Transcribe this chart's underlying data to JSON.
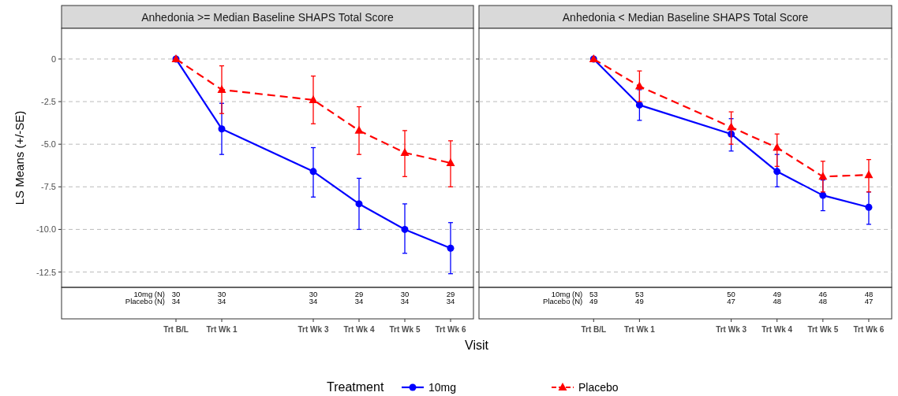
{
  "chart_data": [
    {
      "type": "line",
      "title": "Anhedonia >= Median Baseline SHAPS Total Score",
      "xlabel": "Visit",
      "ylabel": "LS Means (+/-SE)",
      "legend_title": "Treatment",
      "legend": "bottom",
      "grid": "y",
      "categories": [
        null,
        null,
        "Trt B/L",
        "Trt Wk 1",
        null,
        "Trt Wk 3",
        "Trt Wk 4",
        "Trt Wk 5",
        "Trt Wk 6"
      ],
      "ylim": [
        -13.4,
        1.8
      ],
      "yticks": [
        {
          "value": 0,
          "label": "0"
        },
        {
          "value": -2.5,
          "label": "-2.5"
        },
        {
          "value": -5,
          "label": "-5.0"
        },
        {
          "value": -7.5,
          "label": "-7.5"
        },
        {
          "value": -10,
          "label": "-10.0"
        },
        {
          "value": -12.5,
          "label": "-12.5"
        }
      ],
      "series": [
        {
          "name": "10mg",
          "color": "#0000ff",
          "marker": "circle",
          "line_style": "solid",
          "values": [
            null,
            null,
            0,
            -4.1,
            null,
            -6.6,
            -8.5,
            -10.0,
            -11.1
          ],
          "errors": [
            null,
            null,
            null,
            [
              -5.6,
              -2.6
            ],
            null,
            [
              -8.1,
              -5.2
            ],
            [
              -10.0,
              -7.0
            ],
            [
              -11.4,
              -8.5
            ],
            [
              -12.6,
              -9.6
            ]
          ]
        },
        {
          "name": "Placebo",
          "color": "#ff0000",
          "marker": "triangle",
          "line_style": "dashed",
          "values": [
            null,
            null,
            0,
            -1.8,
            null,
            -2.4,
            -4.2,
            -5.5,
            -6.1
          ],
          "errors": [
            null,
            null,
            null,
            [
              -3.2,
              -0.4
            ],
            null,
            [
              -3.8,
              -1.0
            ],
            [
              -5.6,
              -2.8
            ],
            [
              -6.9,
              -4.2
            ],
            [
              -7.5,
              -4.8
            ]
          ]
        }
      ],
      "annotations": [
        "10mg (N)",
        "Placebo (N)",
        "30",
        "30",
        "30",
        "29",
        "30",
        "29",
        "34",
        "34",
        "34",
        "34",
        "34",
        "34"
      ]
    },
    {
      "type": "line",
      "title": "Anhedonia < Median Baseline SHAPS Total Score",
      "grid": "y",
      "tick_labels": "x",
      "categories": [
        null,
        null,
        "Trt B/L",
        "Trt Wk 1",
        null,
        "Trt Wk 3",
        "Trt Wk 4",
        "Trt Wk 5",
        "Trt Wk 6"
      ],
      "ylim": [
        -13.4,
        1.8
      ],
      "yticks": [
        {
          "value": 0,
          "label": null
        },
        {
          "value": -2.5,
          "label": null
        },
        {
          "value": -5,
          "label": null
        },
        {
          "value": -7.5,
          "label": null
        },
        {
          "value": -10,
          "label": null
        },
        {
          "value": -12.5,
          "label": null
        }
      ],
      "series": [
        {
          "color": "#0000ff",
          "marker": "circle",
          "line_style": "solid",
          "values": [
            null,
            null,
            0,
            -2.7,
            null,
            -4.4,
            -6.6,
            -8.0,
            -8.7
          ],
          "errors": [
            null,
            null,
            null,
            [
              -3.6,
              -1.8
            ],
            null,
            [
              -5.4,
              -3.5
            ],
            [
              -7.5,
              -5.6
            ],
            [
              -8.9,
              -7.1
            ],
            [
              -9.7,
              -7.8
            ]
          ]
        },
        {
          "color": "#ff0000",
          "marker": "triangle",
          "line_style": "dashed",
          "values": [
            null,
            null,
            0,
            -1.6,
            null,
            -4.0,
            -5.2,
            -6.9,
            -6.8
          ],
          "errors": [
            null,
            null,
            null,
            [
              -2.5,
              -0.7
            ],
            null,
            [
              -5.0,
              -3.1
            ],
            [
              -6.3,
              -4.4
            ],
            [
              -7.8,
              -6.0
            ],
            [
              -7.8,
              -5.9
            ]
          ]
        }
      ],
      "annotations": [
        "10mg (N)",
        "Placebo (N)",
        "53",
        "53",
        "50",
        "49",
        "46",
        "48",
        "49",
        "49",
        "47",
        "48",
        "48",
        "47"
      ]
    }
  ]
}
